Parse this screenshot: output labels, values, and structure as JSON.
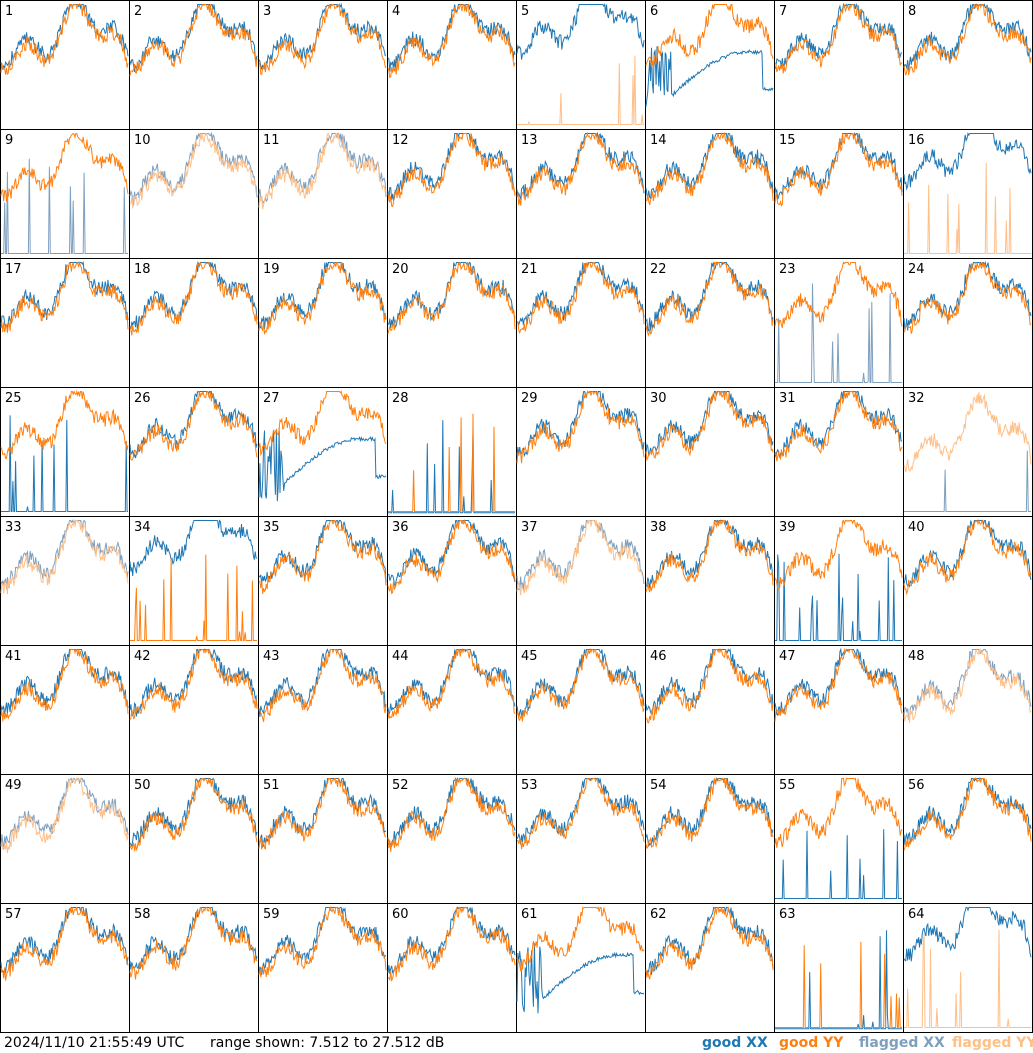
{
  "chart_data": {
    "type": "line",
    "grid": {
      "rows": 8,
      "cols": 8
    },
    "y_range_db": [
      7.512,
      27.512
    ],
    "tiles": [
      1,
      2,
      3,
      4,
      5,
      6,
      7,
      8,
      9,
      10,
      11,
      12,
      13,
      14,
      15,
      16,
      17,
      18,
      19,
      20,
      21,
      22,
      23,
      24,
      25,
      26,
      27,
      28,
      29,
      30,
      31,
      32,
      33,
      34,
      35,
      36,
      37,
      38,
      39,
      40,
      41,
      42,
      43,
      44,
      45,
      46,
      47,
      48,
      49,
      50,
      51,
      52,
      53,
      54,
      55,
      56,
      57,
      58,
      59,
      60,
      61,
      62,
      63,
      64
    ],
    "series": [
      {
        "name": "good XX",
        "color": "#1f77b4"
      },
      {
        "name": "good YY",
        "color": "#ff7f0e"
      },
      {
        "name": "flagged XX",
        "color": "#7f9fbf"
      },
      {
        "name": "flagged YY",
        "color": "#ffbf87"
      }
    ]
  },
  "footer": {
    "timestamp": "2024/11/10 21:55:49 UTC",
    "range_text": "range shown: 7.512 to 27.512 dB",
    "legend": [
      {
        "label": "good XX",
        "color": "#1f77b4"
      },
      {
        "label": "good YY",
        "color": "#ff7f0e"
      },
      {
        "label": "flagged XX",
        "color": "#7f9fbf"
      },
      {
        "label": "flagged YY",
        "color": "#ffbf87"
      }
    ]
  }
}
